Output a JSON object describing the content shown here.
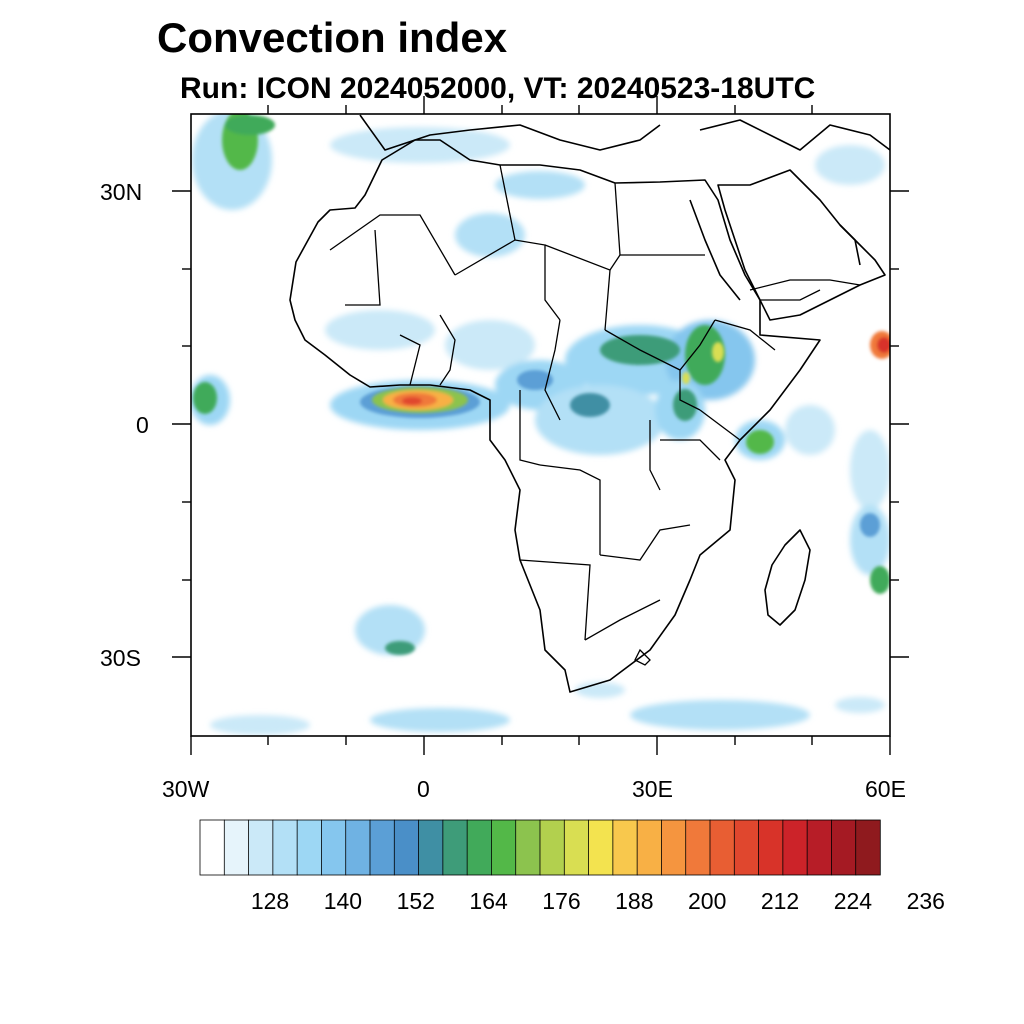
{
  "title": "Convection index",
  "subtitle": "Run: ICON 2024052000,  VT: 20240523-18UTC",
  "map": {
    "region": "Africa",
    "lon_range": [
      -30,
      60
    ],
    "lat_range": [
      -40,
      40
    ],
    "lat_ticks": [
      "30N",
      "0",
      "30S"
    ],
    "lon_ticks": [
      "30W",
      "0",
      "30E",
      "60E"
    ]
  },
  "colorbar": {
    "tick_labels": [
      "128",
      "140",
      "152",
      "164",
      "176",
      "188",
      "200",
      "212",
      "224",
      "236"
    ],
    "colors": [
      "#ffffff",
      "#e6f4fb",
      "#cbe9f8",
      "#b3e0f6",
      "#9dd7f4",
      "#85c6ee",
      "#6fb2e3",
      "#5b9fd6",
      "#4a8fc8",
      "#3f8fa4",
      "#3e9c79",
      "#41aa5a",
      "#53b848",
      "#8cc34e",
      "#b2d04e",
      "#d9de52",
      "#f3e34f",
      "#f8c84d",
      "#f8b045",
      "#f5953f",
      "#f0793a",
      "#e85e33",
      "#e0472e",
      "#d83329",
      "#cc2329",
      "#b71d27",
      "#a51a23",
      "#8f1a1e"
    ]
  }
}
